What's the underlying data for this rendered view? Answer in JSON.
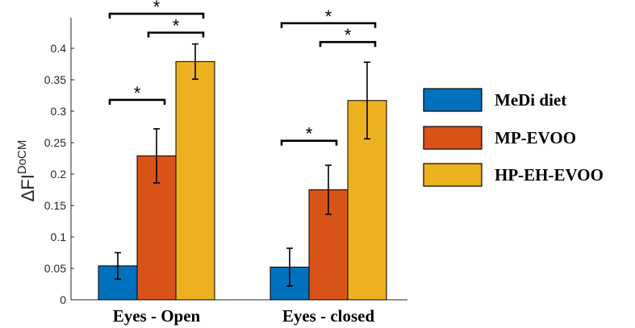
{
  "chart_data": {
    "type": "bar",
    "ylabel": {
      "base": "ΔFI",
      "sup": "DoCM"
    },
    "ylim": [
      0,
      0.45
    ],
    "yticks": [
      0,
      0.05,
      0.1,
      0.15,
      0.2,
      0.25,
      0.3,
      0.35,
      0.4
    ],
    "ytick_labels": [
      "0",
      "0.05",
      "0.1",
      "0.15",
      "0.2",
      "0.25",
      "0.3",
      "0.35",
      "0.4"
    ],
    "categories": [
      "Eyes - Open",
      "Eyes - closed"
    ],
    "series": [
      {
        "name": "MeDi diet",
        "color": "#0072BD",
        "values": [
          0.054,
          0.052
        ],
        "errors": [
          0.021,
          0.03
        ]
      },
      {
        "name": "MP-EVOO",
        "color": "#D95319",
        "values": [
          0.229,
          0.175
        ],
        "errors": [
          0.043,
          0.039
        ]
      },
      {
        "name": "HP-EH-EVOO",
        "color": "#EDB120",
        "values": [
          0.379,
          0.317
        ],
        "errors": [
          0.028,
          0.061
        ]
      }
    ],
    "significance": [
      {
        "category": 0,
        "from": 0,
        "to": 1,
        "label": "*",
        "y": 0.318
      },
      {
        "category": 0,
        "from": 1,
        "to": 2,
        "label": "*",
        "y": 0.425
      },
      {
        "category": 0,
        "from": 0,
        "to": 2,
        "label": "*",
        "y": 0.455
      },
      {
        "category": 1,
        "from": 0,
        "to": 1,
        "label": "*",
        "y": 0.253
      },
      {
        "category": 1,
        "from": 1,
        "to": 2,
        "label": "*",
        "y": 0.41
      },
      {
        "category": 1,
        "from": 0,
        "to": 2,
        "label": "*",
        "y": 0.44
      }
    ],
    "legend_position": "right",
    "grid": false
  }
}
